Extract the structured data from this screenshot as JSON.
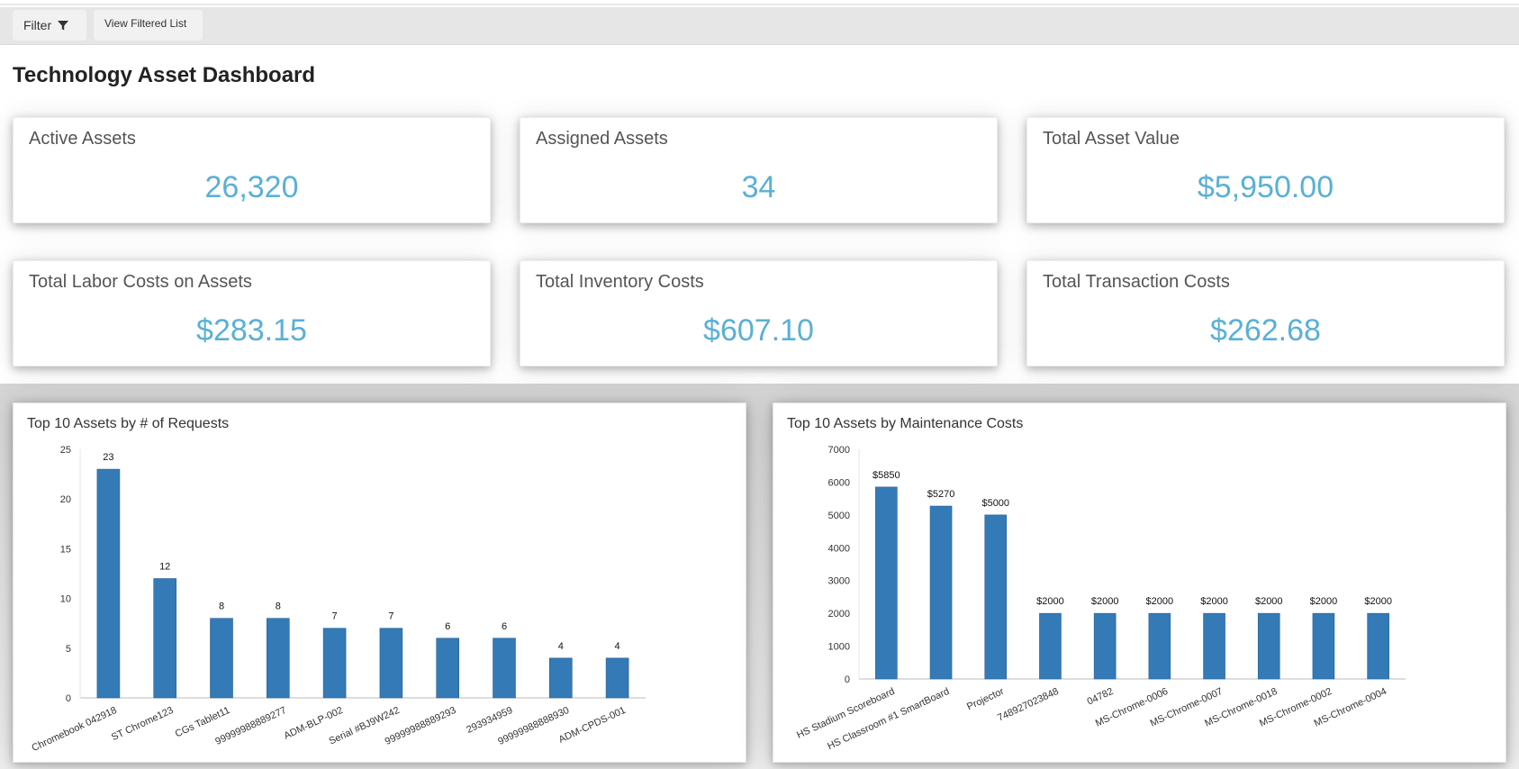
{
  "toolbar": {
    "filter_label": "Filter",
    "filter_icon": "funnel-icon",
    "view_filtered_label": "View Filtered List"
  },
  "page": {
    "title": "Technology Asset Dashboard"
  },
  "kpis": [
    {
      "label": "Active Assets",
      "value": "26,320"
    },
    {
      "label": "Assigned Assets",
      "value": "34"
    },
    {
      "label": "Total Asset Value",
      "value": "$5,950.00"
    },
    {
      "label": "Total Labor Costs on Assets",
      "value": "$283.15"
    },
    {
      "label": "Total Inventory Costs",
      "value": "$607.10"
    },
    {
      "label": "Total Transaction Costs",
      "value": "$262.68"
    }
  ],
  "colors": {
    "accent_value": "#5ab0d6",
    "bar": "#337ab7"
  },
  "chart_data": [
    {
      "type": "bar",
      "title": "Top 10 Assets by # of Requests",
      "categories": [
        "Chromebook 042918",
        "ST Chrome123",
        "CGs Tablet11",
        "99999988889277",
        "ADM-BLP-002",
        "Serial #BJ9W242",
        "99999988889293",
        "293934959",
        "99999988888930",
        "ADM-CPDS-001"
      ],
      "values": [
        23,
        12,
        8,
        8,
        7,
        7,
        6,
        6,
        4,
        4
      ],
      "data_labels": [
        "23",
        "12",
        "8",
        "8",
        "7",
        "7",
        "6",
        "6",
        "4",
        "4"
      ],
      "yticks": [
        "0",
        "5",
        "10",
        "15",
        "20",
        "25"
      ],
      "ylim": [
        0,
        25
      ],
      "xlabel": "",
      "ylabel": ""
    },
    {
      "type": "bar",
      "title": "Top 10 Assets by Maintenance Costs",
      "categories": [
        "HS Stadium Scoreboard",
        "HS Classroom #1 SmartBoard",
        "Projector",
        "748927023848",
        "04782",
        "MS-Chrome-0006",
        "MS-Chrome-0007",
        "MS-Chrome-0018",
        "MS-Chrome-0002",
        "MS-Chrome-0004"
      ],
      "values": [
        5850,
        5270,
        5000,
        2000,
        2000,
        2000,
        2000,
        2000,
        2000,
        2000
      ],
      "data_labels": [
        "$5850",
        "$5270",
        "$5000",
        "$2000",
        "$2000",
        "$2000",
        "$2000",
        "$2000",
        "$2000",
        "$2000"
      ],
      "yticks": [
        "0",
        "1000",
        "2000",
        "3000",
        "4000",
        "5000",
        "6000",
        "7000"
      ],
      "ylim": [
        0,
        7000
      ],
      "xlabel": "",
      "ylabel": ""
    }
  ]
}
